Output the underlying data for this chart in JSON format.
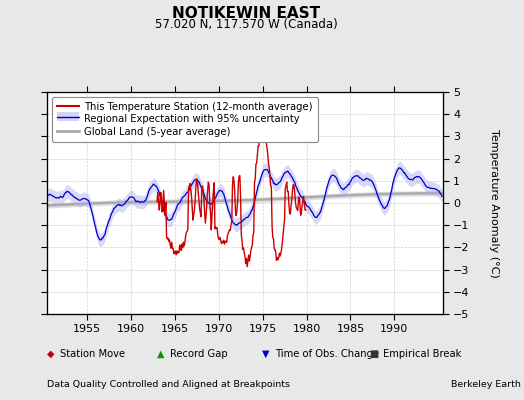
{
  "title": "NOTIKEWIN EAST",
  "subtitle": "57.020 N, 117.570 W (Canada)",
  "ylabel": "Temperature Anomaly (°C)",
  "xlim": [
    1950.5,
    1995.5
  ],
  "ylim": [
    -5,
    5
  ],
  "yticks": [
    -5,
    -4,
    -3,
    -2,
    -1,
    0,
    1,
    2,
    3,
    4,
    5
  ],
  "xticks": [
    1955,
    1960,
    1965,
    1970,
    1975,
    1980,
    1985,
    1990
  ],
  "bg_color": "#e8e8e8",
  "plot_bg_color": "#ffffff",
  "red_line_color": "#cc0000",
  "blue_line_color": "#0000cc",
  "blue_fill_color": "#aaaaee",
  "gray_line_color": "#aaaaaa",
  "gray_fill_color": "#cccccc",
  "legend_items": [
    {
      "label": "This Temperature Station (12-month average)",
      "color": "#cc0000",
      "lw": 1.5
    },
    {
      "label": "Regional Expectation with 95% uncertainty",
      "color": "#0000cc",
      "lw": 1.0
    },
    {
      "label": "Global Land (5-year average)",
      "color": "#aaaaaa",
      "lw": 2.0
    }
  ],
  "bottom_legend": [
    {
      "marker": "D",
      "color": "#cc0000",
      "label": "Station Move"
    },
    {
      "marker": "^",
      "color": "#009900",
      "label": "Record Gap"
    },
    {
      "marker": "v",
      "color": "#0000cc",
      "label": "Time of Obs. Change"
    },
    {
      "marker": "s",
      "color": "#333333",
      "label": "Empirical Break"
    }
  ],
  "footnote_left": "Data Quality Controlled and Aligned at Breakpoints",
  "footnote_right": "Berkeley Earth",
  "x_start": 1950.5,
  "x_end": 1995.5
}
